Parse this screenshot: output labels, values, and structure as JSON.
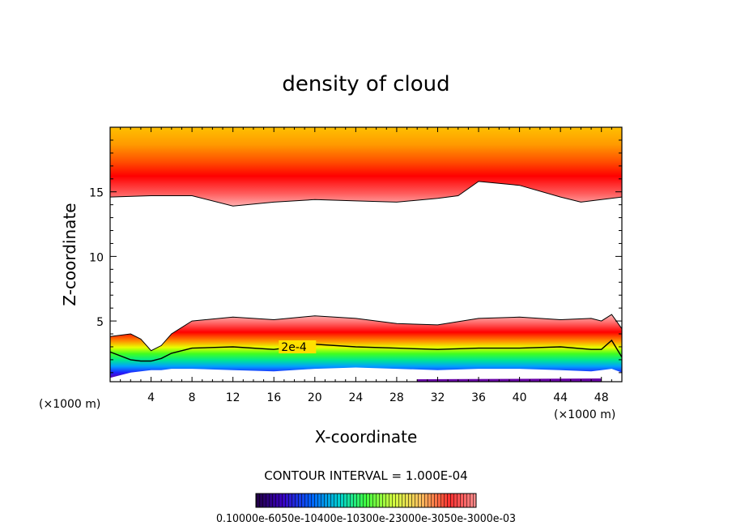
{
  "chart_data": {
    "type": "heatmap",
    "title": "density of cloud",
    "xlabel": "X-coordinate",
    "ylabel": "Z-coordinate",
    "x_unit": "(×1000 m)",
    "xlim": [
      0,
      50
    ],
    "ylim": [
      0.3,
      20
    ],
    "x_ticks": [
      4,
      8,
      12,
      16,
      20,
      24,
      28,
      32,
      36,
      40,
      44,
      48
    ],
    "y_ticks": [
      5,
      10,
      15
    ],
    "contour_interval": "CONTOUR INTERVAL = 1.000E-04",
    "contour_label": "2e-4",
    "colorbar_labels_text": "0.10000e-6050e-10400e-10300e-23000e-3050e-3000e-03",
    "colormap": [
      "#4b0082",
      "#0000ff",
      "#00b4ff",
      "#00ff80",
      "#80ff00",
      "#ffff00",
      "#ffa500",
      "#ff0000",
      "#ff9090"
    ],
    "upper_layer": {
      "x": [
        0,
        4,
        8,
        12,
        16,
        20,
        24,
        28,
        32,
        34,
        36,
        40,
        44,
        46,
        48,
        50
      ],
      "base_z": [
        14.6,
        14.7,
        14.7,
        13.9,
        14.2,
        14.4,
        14.3,
        14.2,
        14.5,
        14.7,
        15.8,
        15.5,
        14.6,
        14.2,
        14.4,
        14.6
      ]
    },
    "lower_layer": {
      "x": [
        0,
        2,
        3,
        4,
        5,
        6,
        8,
        12,
        16,
        20,
        24,
        28,
        32,
        36,
        40,
        44,
        47,
        48,
        49,
        50
      ],
      "top_z": [
        3.8,
        4.0,
        3.6,
        2.7,
        3.1,
        4.0,
        5.0,
        5.3,
        5.1,
        5.4,
        5.2,
        4.8,
        4.7,
        5.2,
        5.3,
        5.1,
        5.2,
        5.0,
        5.5,
        4.4
      ],
      "contour_2e4_z": [
        2.6,
        2.0,
        1.9,
        1.9,
        2.1,
        2.5,
        2.9,
        3.0,
        2.8,
        3.2,
        3.0,
        2.9,
        2.8,
        2.9,
        2.9,
        3.0,
        2.8,
        2.8,
        3.5,
        2.2
      ],
      "bottom_z": [
        0.6,
        1.0,
        1.1,
        1.2,
        1.2,
        1.3,
        1.3,
        1.2,
        1.1,
        1.3,
        1.4,
        1.3,
        1.2,
        1.3,
        1.3,
        1.2,
        1.1,
        1.2,
        1.3,
        1.0
      ]
    }
  }
}
